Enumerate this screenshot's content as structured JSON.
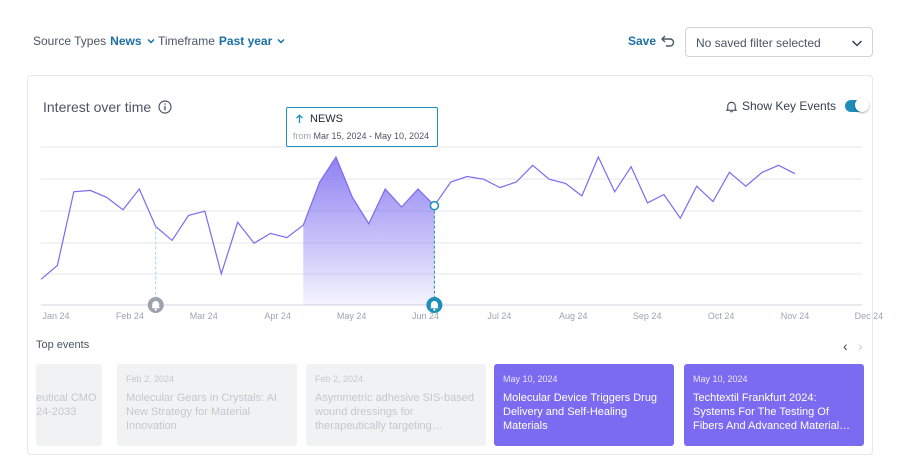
{
  "filters": {
    "source_label": "Source Types",
    "source_value": "News",
    "timeframe_label": "Timeframe",
    "timeframe_value": "Past year"
  },
  "toolbar": {
    "save_label": "Save",
    "saved_filter_placeholder": "No saved filter selected"
  },
  "chart_panel": {
    "title": "Interest over time",
    "key_events_label": "Show Key Events",
    "key_events_enabled": true
  },
  "tooltip": {
    "series": "NEWS",
    "from_label": "from",
    "range": "Mar 15, 2024 - May 10, 2024"
  },
  "chart_data": {
    "type": "line",
    "x_ticks": [
      "Jan 24",
      "Feb 24",
      "Mar 24",
      "Apr 24",
      "May 24",
      "Jun 24",
      "Jul 24",
      "Aug 24",
      "Sep 24",
      "Oct 24",
      "Nov 24",
      "Dec 24"
    ],
    "values": [
      12,
      22,
      75,
      76,
      71,
      62,
      77,
      50,
      40,
      58,
      61,
      16,
      53,
      38,
      45,
      42,
      51,
      82,
      100,
      71,
      52,
      77,
      64,
      77,
      65,
      82,
      86,
      84,
      78,
      82,
      94,
      84,
      81,
      72,
      100,
      75,
      93,
      67,
      73,
      56,
      79,
      68,
      89,
      79,
      89,
      94,
      88
    ],
    "ylim": [
      0,
      100
    ],
    "highlighted_range": [
      "Mar 15, 2024",
      "May 10, 2024"
    ],
    "key_events": [
      {
        "date": "Feb 2, 2024",
        "active": false
      },
      {
        "date": "May 10, 2024",
        "active": true
      }
    ],
    "grid": true,
    "accent_color": "#7b6bf0",
    "marker_color": "#1d8fb8"
  },
  "top_events": {
    "label": "Top events",
    "items": [
      {
        "date": "",
        "title": "eutical CMO\n24-2033",
        "active": false
      },
      {
        "date": "Feb 2, 2024",
        "title": "Molecular Gears in Crystals: AI New Strategy for Material Innovation",
        "active": false
      },
      {
        "date": "Feb 2, 2024",
        "title": "Asymmetric adhesive SIS-based wound dressings for therapeutically targeting…",
        "active": false
      },
      {
        "date": "May 10, 2024",
        "title": "Molecular Device Triggers Drug Delivery and Self-Healing Materials",
        "active": true
      },
      {
        "date": "May 10, 2024",
        "title": "Techtextil Frankfurt 2024: Systems For The Testing Of Fibers And Advanced Material…",
        "active": true
      }
    ]
  }
}
